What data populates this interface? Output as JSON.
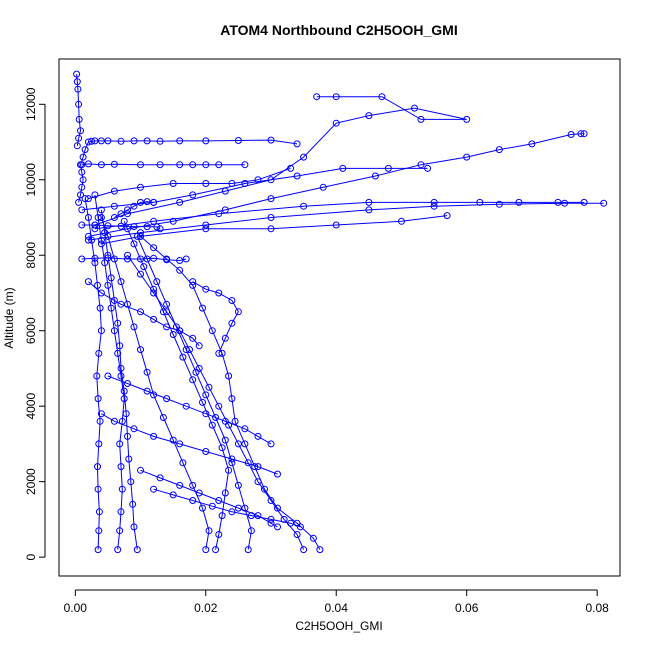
{
  "chart_data": {
    "type": "line",
    "title": "ATOM4 Northbound C2H5OOH_GMI",
    "xlabel": "C2H5OOH_GMI",
    "ylabel": "Altitude (m)",
    "xlim": [
      -0.0025,
      0.0835
    ],
    "ylim": [
      -500,
      13200
    ],
    "xticks": [
      0.0,
      0.02,
      0.04,
      0.06,
      0.08
    ],
    "xtick_labels": [
      "0.00",
      "0.02",
      "0.04",
      "0.06",
      "0.08"
    ],
    "yticks": [
      0,
      2000,
      4000,
      6000,
      8000,
      10000,
      12000
    ],
    "ytick_labels": [
      "0",
      "2000",
      "4000",
      "6000",
      "8000",
      "10000",
      "12000"
    ],
    "grid": false,
    "marker": "open-circle",
    "color": "#0000ff",
    "series": [
      {
        "x": [
          0.0035,
          0.0036,
          0.0037,
          0.0035,
          0.0034,
          0.0036,
          0.0038,
          0.0035,
          0.0033,
          0.0036,
          0.004,
          0.0038,
          0.0034,
          0.003,
          0.0025,
          0.002,
          0.0015
        ],
        "y": [
          200,
          700,
          1200,
          1800,
          2400,
          3000,
          3600,
          4200,
          4800,
          5400,
          6000,
          6600,
          7200,
          7800,
          8400,
          9000,
          9500
        ]
      },
      {
        "x": [
          0.0065,
          0.0068,
          0.007,
          0.0072,
          0.007,
          0.0068,
          0.0072,
          0.0075,
          0.007,
          0.0065,
          0.006,
          0.0055,
          0.005,
          0.0045,
          0.004,
          0.0035,
          0.003
        ],
        "y": [
          200,
          700,
          1200,
          1800,
          2400,
          3000,
          3600,
          4200,
          4800,
          5400,
          6000,
          6600,
          7200,
          7800,
          8400,
          9000,
          9600
        ]
      },
      {
        "x": [
          0.0095,
          0.009,
          0.0088,
          0.0085,
          0.0082,
          0.008,
          0.0078,
          0.0075,
          0.007,
          0.0068,
          0.0065,
          0.006,
          0.0055,
          0.005,
          0.0045,
          0.004
        ],
        "y": [
          200,
          800,
          1400,
          2000,
          2600,
          3200,
          3800,
          4400,
          5000,
          5600,
          6200,
          6800,
          7400,
          8000,
          8600,
          9200
        ]
      },
      {
        "x": [
          0.02,
          0.0205,
          0.0195,
          0.018,
          0.0165,
          0.015,
          0.0135,
          0.012,
          0.011,
          0.01,
          0.009,
          0.008,
          0.007,
          0.006,
          0.005,
          0.004
        ],
        "y": [
          200,
          700,
          1300,
          1900,
          2500,
          3100,
          3700,
          4300,
          4900,
          5500,
          6100,
          6700,
          7300,
          7900,
          8500,
          9000
        ]
      },
      {
        "x": [
          0.0215,
          0.022,
          0.0225,
          0.023,
          0.0235,
          0.0225,
          0.021,
          0.0195,
          0.018,
          0.0165,
          0.015,
          0.0135,
          0.012,
          0.0105,
          0.009,
          0.0075
        ],
        "y": [
          200,
          600,
          1100,
          1700,
          2300,
          2900,
          3500,
          4100,
          4700,
          5300,
          5900,
          6500,
          7100,
          7700,
          8300,
          8900
        ]
      },
      {
        "x": [
          0.0265,
          0.027,
          0.026,
          0.025,
          0.024,
          0.023,
          0.0215,
          0.02,
          0.0185,
          0.017,
          0.0155,
          0.014,
          0.0125,
          0.011,
          0.0095
        ],
        "y": [
          200,
          700,
          1300,
          1900,
          2500,
          3100,
          3700,
          4300,
          4900,
          5500,
          6100,
          6700,
          7300,
          7900,
          8500
        ]
      },
      {
        "x": [
          0.035,
          0.034,
          0.032,
          0.03,
          0.028,
          0.0265,
          0.025,
          0.0235,
          0.022,
          0.0205,
          0.019,
          0.0175,
          0.016,
          0.014,
          0.012,
          0.01,
          0.008
        ],
        "y": [
          200,
          600,
          1000,
          1500,
          2000,
          2500,
          3000,
          3500,
          4000,
          4500,
          5000,
          5500,
          6000,
          6500,
          7000,
          7500,
          8000
        ]
      },
      {
        "x": [
          0.0375,
          0.0365,
          0.034,
          0.031,
          0.029,
          0.0275,
          0.026,
          0.0245,
          0.024,
          0.0235,
          0.0225,
          0.021,
          0.0195,
          0.018,
          0.016,
          0.014,
          0.012,
          0.01
        ],
        "y": [
          200,
          500,
          900,
          1300,
          1800,
          2400,
          3000,
          3600,
          4200,
          4800,
          5400,
          6000,
          6600,
          7200,
          7600,
          7900,
          8200,
          8500
        ]
      },
      {
        "x": [
          0.0005,
          0.0008,
          0.001,
          0.0012,
          0.001,
          0.0008,
          0.0012,
          0.0015,
          0.002,
          0.0025,
          0.003,
          0.004,
          0.005,
          0.007,
          0.009,
          0.011,
          0.013,
          0.016,
          0.02,
          0.025,
          0.03,
          0.034
        ],
        "y": [
          9400,
          9600,
          9800,
          10000,
          10200,
          10400,
          10600,
          10800,
          11000,
          11020,
          11030,
          11030,
          11030,
          11020,
          11030,
          11030,
          11020,
          11030,
          11030,
          11040,
          11050,
          10950
        ]
      },
      {
        "x": [
          0.001,
          0.002,
          0.004,
          0.006,
          0.01,
          0.013,
          0.016,
          0.018,
          0.02,
          0.022,
          0.026
        ],
        "y": [
          10400,
          10420,
          10400,
          10410,
          10400,
          10400,
          10400,
          10400,
          10400,
          10400,
          10400
        ]
      },
      {
        "x": [
          0.002,
          0.008,
          0.015,
          0.023,
          0.03,
          0.038,
          0.046,
          0.053,
          0.06,
          0.065,
          0.07,
          0.076,
          0.0775,
          0.078
        ],
        "y": [
          8500,
          8700,
          8900,
          9200,
          9500,
          9800,
          10100,
          10400,
          10600,
          10800,
          10950,
          11200,
          11220,
          11220
        ]
      },
      {
        "x": [
          0.002,
          0.01,
          0.02,
          0.03,
          0.045,
          0.055,
          0.065,
          0.075,
          0.081
        ],
        "y": [
          8400,
          8600,
          8800,
          9000,
          9200,
          9300,
          9350,
          9380,
          9380
        ]
      },
      {
        "x": [
          0.003,
          0.012,
          0.022,
          0.035,
          0.045,
          0.055,
          0.062,
          0.068,
          0.074,
          0.078
        ],
        "y": [
          8700,
          8900,
          9100,
          9300,
          9400,
          9400,
          9400,
          9400,
          9400,
          9400
        ]
      },
      {
        "x": [
          0.004,
          0.01,
          0.02,
          0.03,
          0.04,
          0.05,
          0.057
        ],
        "y": [
          8300,
          8500,
          8700,
          8700,
          8800,
          8900,
          9050
        ]
      },
      {
        "x": [
          0.003,
          0.008,
          0.016,
          0.023,
          0.03,
          0.035,
          0.04,
          0.045,
          0.052,
          0.06,
          0.053,
          0.047,
          0.04,
          0.037
        ],
        "y": [
          8800,
          9100,
          9400,
          9700,
          10000,
          10600,
          11500,
          11700,
          11900,
          11600,
          11600,
          12200,
          12200,
          12200
        ]
      },
      {
        "x": [
          0.001,
          0.006,
          0.012,
          0.018,
          0.026,
          0.034,
          0.041,
          0.048,
          0.054
        ],
        "y": [
          9200,
          9300,
          9400,
          9600,
          9900,
          10100,
          10300,
          10300,
          10300
        ]
      },
      {
        "x": [
          0.002,
          0.006,
          0.01,
          0.015,
          0.02,
          0.024,
          0.028,
          0.033
        ],
        "y": [
          9500,
          9700,
          9800,
          9900,
          9900,
          9900,
          10000,
          10300
        ]
      },
      {
        "x": [
          0.0002,
          0.0003,
          0.0004,
          0.0005,
          0.0006,
          0.0008,
          0.0005,
          0.0003
        ],
        "y": [
          12800,
          12600,
          12400,
          12000,
          11600,
          11300,
          11100,
          10900
        ]
      },
      {
        "x": [
          0.001,
          0.003,
          0.005,
          0.007,
          0.009,
          0.011,
          0.0125,
          0.013
        ],
        "y": [
          8800,
          8800,
          8780,
          8770,
          8760,
          8760,
          8750,
          8700
        ]
      },
      {
        "x": [
          0.001,
          0.003,
          0.005,
          0.008,
          0.01,
          0.012,
          0.014,
          0.016,
          0.017
        ],
        "y": [
          7900,
          7920,
          7930,
          7900,
          7900,
          7920,
          7880,
          7860,
          7900
        ]
      },
      {
        "x": [
          0.006,
          0.007,
          0.008,
          0.009,
          0.01,
          0.011,
          0.012
        ],
        "y": [
          9000,
          9100,
          9200,
          9300,
          9400,
          9420,
          9400
        ]
      },
      {
        "x": [
          0.002,
          0.004,
          0.007,
          0.01,
          0.012,
          0.014,
          0.016,
          0.018,
          0.019
        ],
        "y": [
          7300,
          7000,
          6700,
          6500,
          6300,
          6100,
          6000,
          5800,
          5600
        ]
      },
      {
        "x": [
          0.018,
          0.02,
          0.022,
          0.024,
          0.025,
          0.024,
          0.023,
          0.022
        ],
        "y": [
          7300,
          7100,
          7000,
          6800,
          6500,
          6200,
          5800,
          5400
        ]
      },
      {
        "x": [
          0.005,
          0.008,
          0.011,
          0.014,
          0.017,
          0.02,
          0.023,
          0.026,
          0.028,
          0.03
        ],
        "y": [
          4800,
          4600,
          4400,
          4200,
          4000,
          3800,
          3600,
          3400,
          3200,
          3000
        ]
      },
      {
        "x": [
          0.004,
          0.006,
          0.009,
          0.012,
          0.016,
          0.02,
          0.024,
          0.028,
          0.031
        ],
        "y": [
          3800,
          3600,
          3400,
          3200,
          3000,
          2800,
          2600,
          2400,
          2200
        ]
      },
      {
        "x": [
          0.01,
          0.013,
          0.016,
          0.019,
          0.022,
          0.025,
          0.028,
          0.03,
          0.031
        ],
        "y": [
          2300,
          2100,
          1900,
          1700,
          1500,
          1300,
          1100,
          900,
          800
        ]
      },
      {
        "x": [
          0.012,
          0.015,
          0.018,
          0.021,
          0.024,
          0.027,
          0.03,
          0.033,
          0.0345
        ],
        "y": [
          1800,
          1650,
          1500,
          1350,
          1200,
          1100,
          1000,
          900,
          800
        ]
      }
    ]
  }
}
